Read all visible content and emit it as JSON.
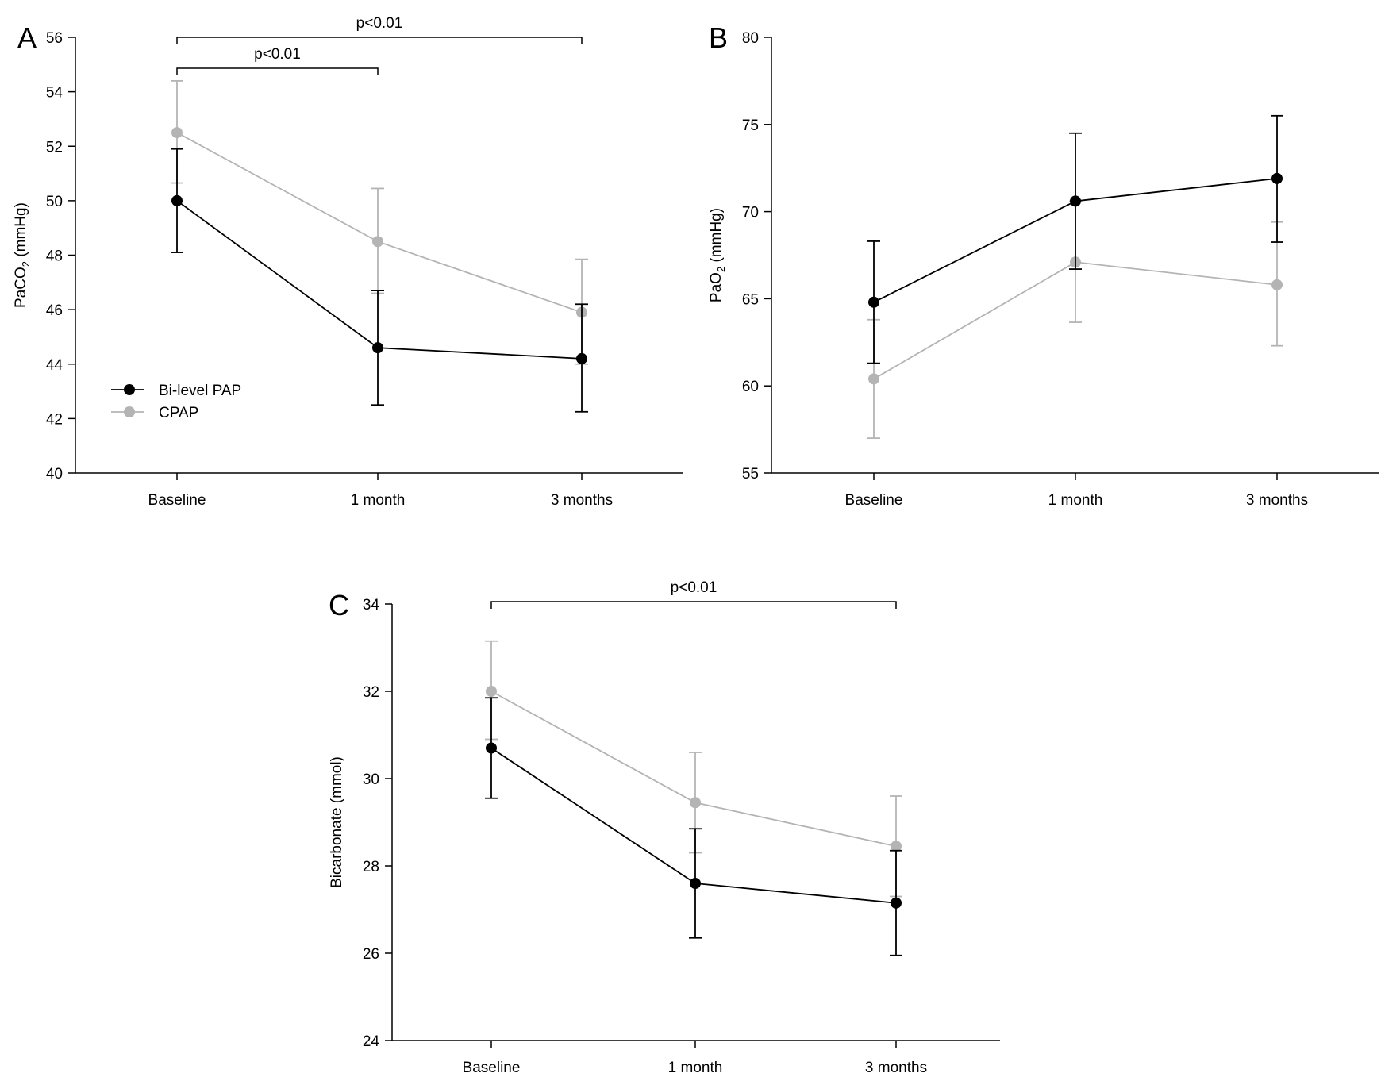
{
  "chart_data": [
    {
      "type": "line",
      "panel_label": "A",
      "ylabel": "PaCO",
      "ylabel_sub": "2",
      "ylabel_unit": " (mmHg)",
      "categories": [
        "Baseline",
        "1 month",
        "3 months"
      ],
      "ylim": [
        40,
        56
      ],
      "yticks": [
        40,
        42,
        44,
        46,
        48,
        50,
        52,
        54,
        56
      ],
      "grid": false,
      "legend": "bottom-left",
      "series": [
        {
          "name": "Bi-level PAP",
          "color": "#000000",
          "values": [
            50.0,
            44.6,
            44.2
          ],
          "err_low": [
            48.1,
            42.5,
            42.25
          ],
          "err_high": [
            51.9,
            46.7,
            46.2
          ]
        },
        {
          "name": "CPAP",
          "color": "#b4b4b4",
          "values": [
            52.5,
            48.5,
            45.9
          ],
          "err_low": [
            50.65,
            46.6,
            44.0
          ],
          "err_high": [
            54.4,
            50.45,
            47.85
          ]
        }
      ],
      "annotations": [
        {
          "text": "p<0.01",
          "from": "Baseline",
          "to": "1 month"
        },
        {
          "text": "p<0.01",
          "from": "Baseline",
          "to": "3 months"
        }
      ]
    },
    {
      "type": "line",
      "panel_label": "B",
      "ylabel": "PaO",
      "ylabel_sub": "2",
      "ylabel_unit": " (mmHg)",
      "categories": [
        "Baseline",
        "1 month",
        "3 months"
      ],
      "ylim": [
        55,
        80
      ],
      "yticks": [
        55,
        60,
        65,
        70,
        75,
        80
      ],
      "grid": false,
      "series": [
        {
          "name": "Bi-level PAP",
          "color": "#000000",
          "values": [
            64.8,
            70.6,
            71.9
          ],
          "err_low": [
            61.3,
            66.7,
            68.25
          ],
          "err_high": [
            68.3,
            74.5,
            75.5
          ]
        },
        {
          "name": "CPAP",
          "color": "#b4b4b4",
          "values": [
            60.4,
            67.1,
            65.8
          ],
          "err_low": [
            57.0,
            63.65,
            62.3
          ],
          "err_high": [
            63.8,
            70.6,
            69.4
          ]
        }
      ],
      "annotations": []
    },
    {
      "type": "line",
      "panel_label": "C",
      "ylabel": "Bicarbonate (mmol)",
      "ylabel_sub": "",
      "ylabel_unit": "",
      "categories": [
        "Baseline",
        "1 month",
        "3 months"
      ],
      "ylim": [
        24,
        34
      ],
      "yticks": [
        24,
        26,
        28,
        30,
        32,
        34
      ],
      "grid": false,
      "series": [
        {
          "name": "Bi-level PAP",
          "color": "#000000",
          "values": [
            30.7,
            27.6,
            27.15
          ],
          "err_low": [
            29.55,
            26.35,
            25.95
          ],
          "err_high": [
            31.85,
            28.85,
            28.35
          ]
        },
        {
          "name": "CPAP",
          "color": "#b4b4b4",
          "values": [
            32.0,
            29.45,
            28.45
          ],
          "err_low": [
            30.9,
            28.3,
            27.3
          ],
          "err_high": [
            33.15,
            30.6,
            29.6
          ]
        }
      ],
      "annotations": [
        {
          "text": "p<0.01",
          "from": "Baseline",
          "to": "3 months"
        }
      ]
    }
  ]
}
